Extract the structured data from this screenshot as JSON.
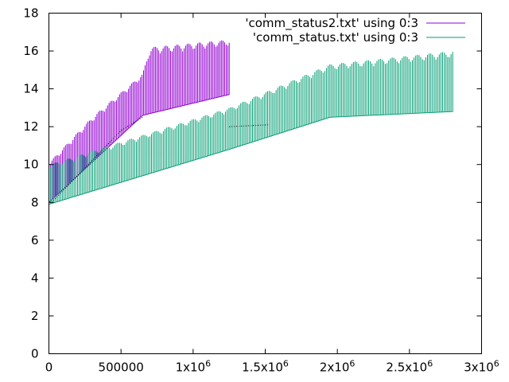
{
  "chart_data": {
    "type": "line",
    "title": "",
    "xlabel": "",
    "ylabel": "",
    "xlim": [
      0,
      3000000
    ],
    "ylim": [
      0,
      18
    ],
    "grid": false,
    "legend_position": "top-right",
    "x_ticks": [
      {
        "value": 0,
        "label": "0"
      },
      {
        "value": 500000,
        "label": "500000"
      },
      {
        "value": 1000000,
        "label": "1x10",
        "sup": "6"
      },
      {
        "value": 1500000,
        "label": "1.5x10",
        "sup": "6"
      },
      {
        "value": 2000000,
        "label": "2x10",
        "sup": "6"
      },
      {
        "value": 2500000,
        "label": "2.5x10",
        "sup": "6"
      },
      {
        "value": 3000000,
        "label": "3x10",
        "sup": "6"
      }
    ],
    "y_ticks": [
      {
        "value": 0,
        "label": "0"
      },
      {
        "value": 2,
        "label": "2"
      },
      {
        "value": 4,
        "label": "4"
      },
      {
        "value": 6,
        "label": "6"
      },
      {
        "value": 8,
        "label": "8"
      },
      {
        "value": 10,
        "label": "10"
      },
      {
        "value": 12,
        "label": "12"
      },
      {
        "value": 14,
        "label": "14"
      },
      {
        "value": 16,
        "label": "16"
      },
      {
        "value": 18,
        "label": "18"
      }
    ],
    "series": [
      {
        "name": "'comm_status2.txt' using 0:3",
        "color": "#9400d3",
        "x_range": [
          0,
          1250000
        ],
        "baseline": [
          [
            0,
            8.0
          ],
          [
            650000,
            12.6
          ],
          [
            1250000,
            13.7
          ]
        ],
        "spike_top": [
          [
            0,
            10.1
          ],
          [
            300000,
            12.5
          ],
          [
            650000,
            14.8
          ],
          [
            700000,
            16.2
          ],
          [
            1250000,
            16.6
          ]
        ],
        "spike_count": 120
      },
      {
        "name": "'comm_status.txt' using 0:3",
        "color": "#009e73",
        "x_range": [
          0,
          2800000
        ],
        "baseline": [
          [
            0,
            7.9
          ],
          [
            1250000,
            10.8
          ],
          [
            1950000,
            12.5
          ],
          [
            2800000,
            12.8
          ]
        ],
        "spike_top": [
          [
            0,
            10.0
          ],
          [
            1250000,
            13.0
          ],
          [
            1950000,
            15.3
          ],
          [
            2800000,
            16.0
          ]
        ],
        "spike_count": 240
      },
      {
        "name": "",
        "color": "#000000",
        "style": "dotted",
        "segments": [
          [
            [
              20000,
              8.0
            ],
            [
              500000,
              11.8
            ],
            [
              650000,
              12.5
            ]
          ],
          [
            [
              1250000,
              12.0
            ],
            [
              1520000,
              12.1
            ]
          ]
        ]
      }
    ]
  }
}
